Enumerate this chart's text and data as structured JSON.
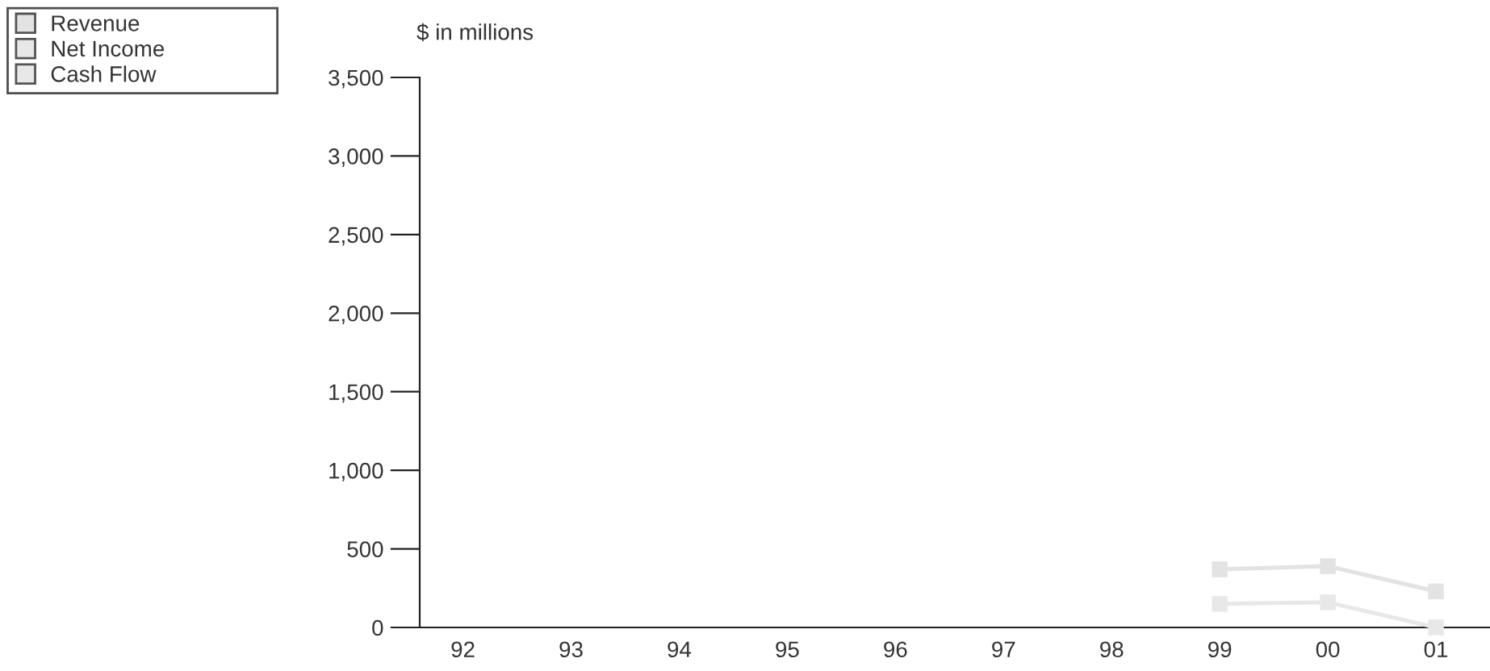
{
  "chart_data": {
    "type": "line",
    "ylabel": "$ in millions",
    "categories": [
      "92",
      "93",
      "94",
      "95",
      "96",
      "97",
      "98",
      "99",
      "00",
      "01"
    ],
    "series": [
      {
        "name": "Revenue",
        "color": "#e3e3e3",
        "values": [
          null,
          null,
          null,
          null,
          null,
          null,
          null,
          370,
          390,
          230
        ]
      },
      {
        "name": "Net Income",
        "color": "#e8e8e8",
        "values": [
          null,
          null,
          null,
          null,
          null,
          null,
          null,
          150,
          160,
          0
        ]
      },
      {
        "name": "Cash Flow",
        "color": "#e8e8e8",
        "values": [
          null,
          null,
          null,
          null,
          null,
          null,
          null,
          null,
          null,
          null
        ]
      }
    ],
    "ylim": [
      0,
      3500
    ],
    "yticks": [
      0,
      500,
      {
        "value": 1000,
        "label": "1,000"
      },
      {
        "value": 1500,
        "label": "1,500"
      },
      {
        "value": 2000,
        "label": "2,000"
      },
      {
        "value": 2500,
        "label": "2,500"
      },
      {
        "value": 3000,
        "label": "3,000"
      },
      {
        "value": 3500,
        "label": "3,500"
      }
    ],
    "legend": "top left",
    "marker": "square"
  }
}
